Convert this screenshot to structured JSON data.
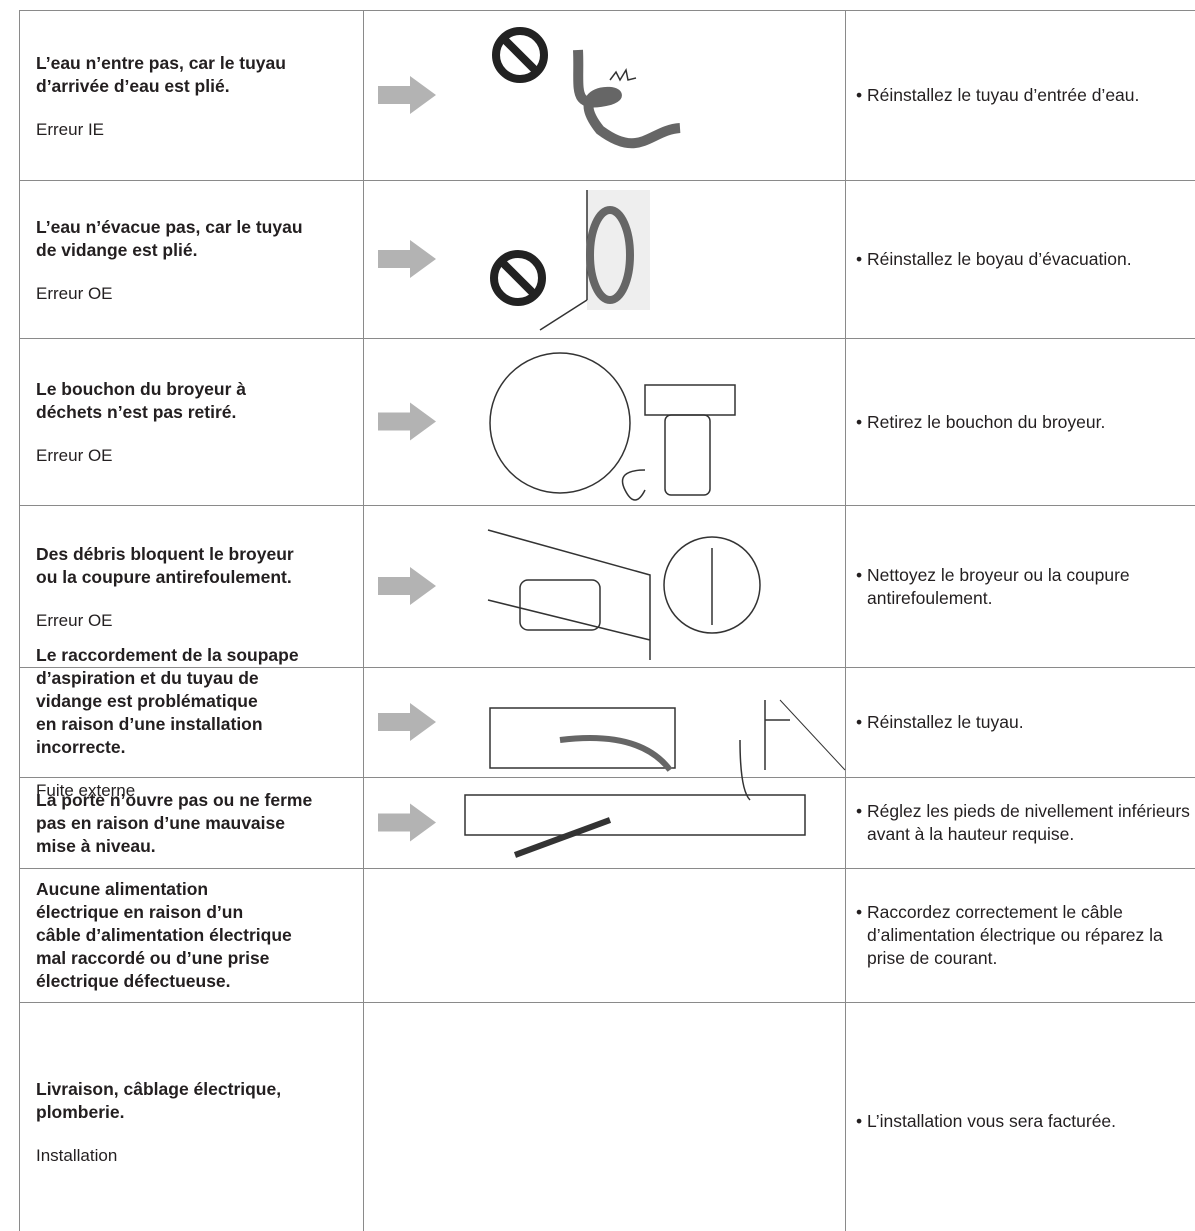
{
  "table": {
    "rows": [
      {
        "cause": [
          "L’eau n’entre pas, car le tuyau",
          "d’arrivée d’eau est plié."
        ],
        "code": "Erreur IE",
        "solution": "• Réinstallez le tuyau d’entrée d’eau."
      },
      {
        "cause": [
          "L’eau n’évacue pas, car le tuyau",
          "de vidange est plié."
        ],
        "code": "Erreur OE",
        "solution": "• Réinstallez le boyau d’évacuation."
      },
      {
        "cause": [
          "Le bouchon du broyeur à",
          "déchets n’est pas retiré."
        ],
        "code": "Erreur OE",
        "solution": "• Retirez le bouchon du broyeur."
      },
      {
        "cause": [
          "Des débris bloquent le broyeur",
          "ou la coupure antirefoulement."
        ],
        "code": "Erreur OE",
        "solution": "• Nettoyez le broyeur ou la coupure antirefoulement."
      },
      {
        "cause": [
          "Le raccordement de la soupape",
          "d’aspiration et du tuyau de",
          "vidange est problématique",
          "en raison d’une installation",
          "incorrecte."
        ],
        "code": "Fuite externe",
        "solution": "• Réinstallez le tuyau."
      },
      {
        "cause": [
          "La porte n’ouvre pas ou ne ferme",
          "pas en raison d’une mauvaise",
          "mise à niveau."
        ],
        "solution": "• Réglez les pieds de nivellement inférieurs avant à la hauteur requise."
      },
      {
        "cause": [
          "Aucune alimentation",
          "électrique en raison d’un",
          "câble d’alimentation électrique",
          "mal raccordé ou d’une prise",
          "électrique défectueuse."
        ],
        "solution": "• Raccordez correctement le câble d’alimentation électrique ou réparez la prise de courant."
      },
      {
        "cause": [
          "Livraison, câblage électrique,",
          "plomberie."
        ],
        "code": "Installation",
        "solution": "• L’installation vous sera facturée."
      }
    ]
  }
}
